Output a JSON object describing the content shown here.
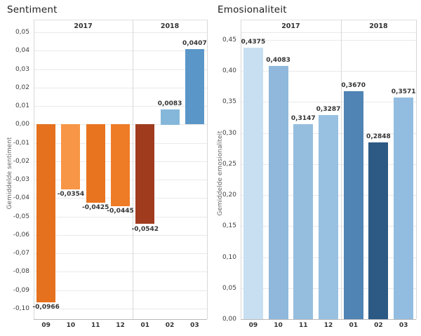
{
  "chart_data": [
    {
      "type": "bar",
      "title": "Sentiment",
      "xlabel": "",
      "ylabel": "Gemiddelde sentiment",
      "categories": [
        "09",
        "10",
        "11",
        "12",
        "01",
        "02",
        "03"
      ],
      "year_groups": [
        {
          "label": "2017",
          "count": 4
        },
        {
          "label": "2018",
          "count": 3
        }
      ],
      "values": [
        -0.0966,
        -0.0354,
        -0.0425,
        -0.0445,
        -0.0542,
        0.0083,
        0.0407
      ],
      "value_labels": [
        "-0,0966",
        "-0,0354",
        "-0,0425",
        "-0,0445",
        "-0,0542",
        "0,0083",
        "0,0407"
      ],
      "bar_colors": [
        "#e5701d",
        "#f79646",
        "#e9741f",
        "#ee7b26",
        "#a03b1e",
        "#85b7da",
        "#5b96c9"
      ],
      "ylim": [
        -0.1,
        0.05
      ],
      "yticks": [
        0.05,
        0.04,
        0.03,
        0.02,
        0.01,
        0.0,
        -0.01,
        -0.02,
        -0.03,
        -0.04,
        -0.05,
        -0.06,
        -0.07,
        -0.08,
        -0.09,
        -0.1
      ],
      "ytick_labels": [
        "0,05",
        "0,04",
        "0,03",
        "0,02",
        "0,01",
        "0,00",
        "-0,01",
        "-0,02",
        "-0,03",
        "-0,04",
        "-0,05",
        "-0,06",
        "-0,07",
        "-0,08",
        "-0,09",
        "-0,10"
      ],
      "grid": true,
      "legend": "none"
    },
    {
      "type": "bar",
      "title": "Emosionaliteit",
      "xlabel": "",
      "ylabel": "Gemiddelde emosionaliteit",
      "categories": [
        "09",
        "10",
        "11",
        "12",
        "01",
        "02",
        "03"
      ],
      "year_groups": [
        {
          "label": "2017",
          "count": 4
        },
        {
          "label": "2018",
          "count": 3
        }
      ],
      "values": [
        0.4375,
        0.4083,
        0.3147,
        0.3287,
        0.367,
        0.2848,
        0.3571
      ],
      "value_labels": [
        "0,4375",
        "0,4083",
        "0,3147",
        "0,3287",
        "0,3670",
        "0,2848",
        "0,3571"
      ],
      "bar_colors": [
        "#c8dff2",
        "#8fb8dc",
        "#95bede",
        "#98c1e1",
        "#5084b4",
        "#2c5a84",
        "#93bde0"
      ],
      "ylim": [
        0.0,
        0.45
      ],
      "yticks": [
        0.45,
        0.4,
        0.35,
        0.3,
        0.25,
        0.2,
        0.15,
        0.1,
        0.05,
        0.0
      ],
      "ytick_labels": [
        "0,45",
        "0,40",
        "0,35",
        "0,30",
        "0,25",
        "0,20",
        "0,15",
        "0,10",
        "0,05",
        "0,00"
      ],
      "grid": true,
      "legend": "none"
    }
  ],
  "colors": {
    "background": "#ffffff",
    "gridline": "#e9e9e9",
    "separator": "#d8d8d8",
    "axis": "#b9b9b9",
    "tick_text": "#3c3c3c",
    "header_text": "#333333",
    "axis_title_text": "#666666",
    "title_text": "#1e1e1e"
  }
}
